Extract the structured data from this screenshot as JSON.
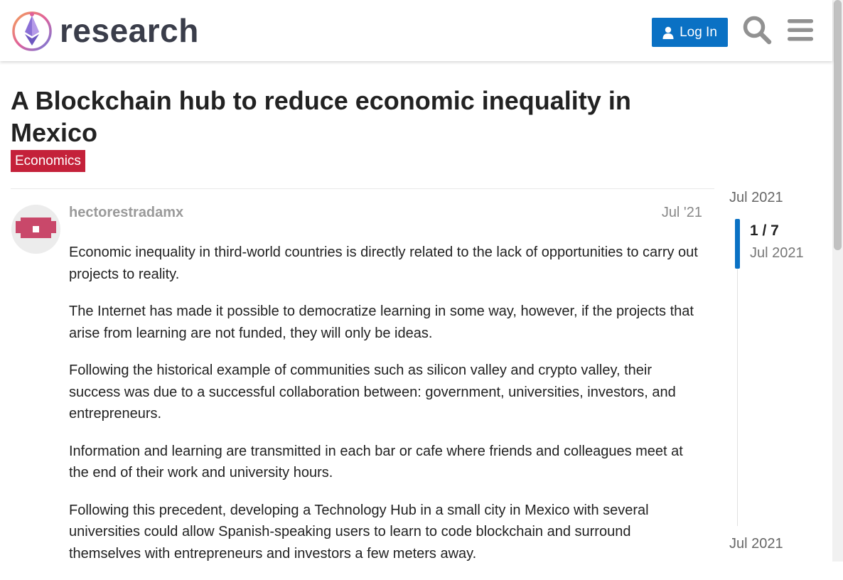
{
  "header": {
    "logo_text": "research",
    "login_label": "Log In",
    "icons": [
      "research-logo-icon",
      "user-icon",
      "search-icon",
      "hamburger-menu-icon"
    ]
  },
  "topic": {
    "title": "A Blockchain hub to reduce economic inequality in Mexico",
    "category": "Economics",
    "category_color": "#c4213a"
  },
  "post": {
    "username": "hectorestradamx",
    "date": "Jul '21",
    "paragraphs": [
      "Economic inequality in third-world countries is directly related to the lack of opportunities to carry out projects to reality.",
      "The Internet has made it possible to democratize learning in some way, however, if the projects that arise from learning are not funded, they will only be ideas.",
      "Following the historical example of communities such as silicon valley and crypto valley, their success was due to a successful collaboration between: government, universities, investors, and entrepreneurs.",
      "Information and learning are transmitted in each bar or cafe where friends and colleagues meet at the end of their work and university hours.",
      "Following this precedent, developing a Technology Hub in a small city in Mexico with several universities could allow Spanish-speaking users to learn to code blockchain and surround themselves with entrepreneurs and investors a few meters away."
    ]
  },
  "timeline": {
    "start_date": "Jul 2021",
    "position": "1 / 7",
    "position_date": "Jul 2021",
    "end_date": "Jul 2021"
  },
  "colors": {
    "accent": "#0a71c4",
    "category": "#c4213a",
    "avatar": "#c9486a"
  }
}
